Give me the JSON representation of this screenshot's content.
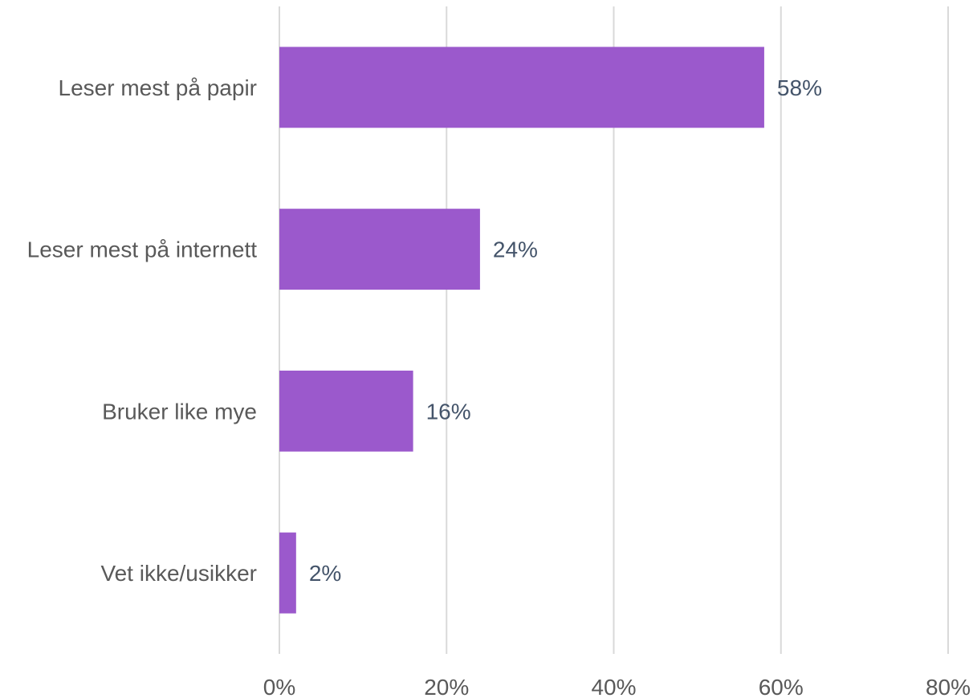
{
  "chart_data": {
    "type": "bar",
    "orientation": "horizontal",
    "title": "",
    "xlabel": "",
    "ylabel": "",
    "categories": [
      "Leser mest på papir",
      "Leser mest på internett",
      "Bruker like mye",
      "Vet ikke/usikker"
    ],
    "values": [
      58,
      24,
      16,
      2
    ],
    "value_labels": [
      "58%",
      "24%",
      "16%",
      "2%"
    ],
    "xlim": [
      0,
      80
    ],
    "x_ticks": [
      0,
      20,
      40,
      60,
      80
    ],
    "x_tick_labels": [
      "0%",
      "20%",
      "40%",
      "60%",
      "80%"
    ],
    "grid": "vertical",
    "legend": "none",
    "colors": {
      "bar": "#9b59cc",
      "gridline": "#d9d9d9",
      "category_text": "#595959",
      "value_text": "#44546a",
      "tick_text": "#595959"
    }
  }
}
